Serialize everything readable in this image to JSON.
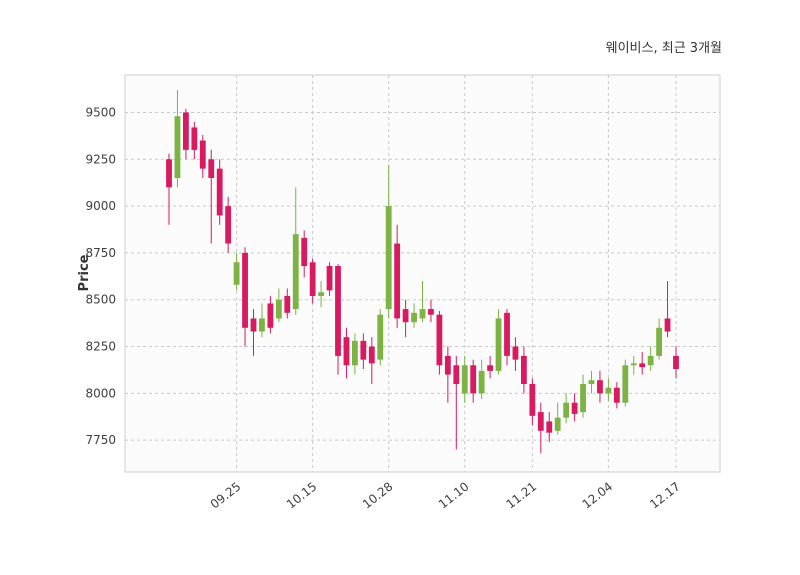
{
  "title": "웨이비스, 최근 3개월",
  "chart_data": {
    "type": "candlestick",
    "title": "웨이비스, 최근 3개월",
    "xlabel": "",
    "ylabel": "Price",
    "legend_position": "none",
    "grid": "dashed",
    "ylim": [
      7580,
      9700
    ],
    "y_ticks": [
      7750,
      8000,
      8250,
      8500,
      8750,
      9000,
      9250,
      9500
    ],
    "x_tick_labels": [
      "09.25",
      "10.15",
      "10.28",
      "11.10",
      "11.21",
      "12.04",
      "12.17"
    ],
    "x_tick_indices": [
      8,
      17,
      26,
      35,
      43,
      52,
      60
    ],
    "colors": {
      "up": "#7cb342",
      "down": "#d81b60",
      "grid": "#c9c9c9",
      "text": "#404040",
      "plot_background": "#fbfbfb"
    },
    "candles_format": [
      "open",
      "high",
      "low",
      "close"
    ],
    "candles": [
      [
        9250,
        9280,
        8900,
        9100
      ],
      [
        9150,
        9620,
        9100,
        9480
      ],
      [
        9500,
        9520,
        9250,
        9300
      ],
      [
        9420,
        9450,
        9250,
        9300
      ],
      [
        9350,
        9380,
        9150,
        9200
      ],
      [
        9250,
        9300,
        8800,
        9150
      ],
      [
        9200,
        9250,
        8900,
        8950
      ],
      [
        9000,
        9050,
        8750,
        8800
      ],
      [
        8580,
        8750,
        8550,
        8700
      ],
      [
        8750,
        8780,
        8250,
        8350
      ],
      [
        8400,
        8450,
        8200,
        8330
      ],
      [
        8330,
        8480,
        8300,
        8400
      ],
      [
        8480,
        8520,
        8320,
        8350
      ],
      [
        8400,
        8560,
        8380,
        8500
      ],
      [
        8520,
        8560,
        8400,
        8430
      ],
      [
        8450,
        9100,
        8420,
        8850
      ],
      [
        8830,
        8870,
        8620,
        8680
      ],
      [
        8700,
        8720,
        8480,
        8520
      ],
      [
        8520,
        8600,
        8460,
        8540
      ],
      [
        8680,
        8700,
        8520,
        8550
      ],
      [
        8680,
        8690,
        8100,
        8200
      ],
      [
        8300,
        8350,
        8080,
        8150
      ],
      [
        8150,
        8320,
        8100,
        8280
      ],
      [
        8280,
        8320,
        8130,
        8180
      ],
      [
        8250,
        8300,
        8050,
        8160
      ],
      [
        8180,
        8450,
        8150,
        8420
      ],
      [
        8450,
        9220,
        8400,
        9000
      ],
      [
        8800,
        8900,
        8350,
        8400
      ],
      [
        8450,
        8500,
        8300,
        8380
      ],
      [
        8380,
        8480,
        8350,
        8430
      ],
      [
        8400,
        8600,
        8380,
        8450
      ],
      [
        8450,
        8500,
        8380,
        8420
      ],
      [
        8420,
        8440,
        8100,
        8150
      ],
      [
        8200,
        8250,
        7950,
        8100
      ],
      [
        8150,
        8200,
        7700,
        8050
      ],
      [
        8000,
        8200,
        7950,
        8150
      ],
      [
        8150,
        8180,
        7950,
        8000
      ],
      [
        8000,
        8180,
        7970,
        8120
      ],
      [
        8150,
        8200,
        8080,
        8120
      ],
      [
        8120,
        8450,
        8100,
        8400
      ],
      [
        8430,
        8450,
        8150,
        8200
      ],
      [
        8250,
        8300,
        8120,
        8180
      ],
      [
        8200,
        8250,
        8000,
        8050
      ],
      [
        8050,
        8080,
        7830,
        7880
      ],
      [
        7900,
        7950,
        7680,
        7800
      ],
      [
        7850,
        7900,
        7740,
        7790
      ],
      [
        7800,
        7950,
        7780,
        7870
      ],
      [
        7870,
        8000,
        7840,
        7950
      ],
      [
        7950,
        8000,
        7850,
        7890
      ],
      [
        7900,
        8100,
        7870,
        8050
      ],
      [
        8050,
        8120,
        8000,
        8070
      ],
      [
        8070,
        8120,
        7950,
        8000
      ],
      [
        8000,
        8080,
        7960,
        8030
      ],
      [
        8030,
        8060,
        7920,
        7950
      ],
      [
        7950,
        8180,
        7930,
        8150
      ],
      [
        8150,
        8200,
        8100,
        8160
      ],
      [
        8160,
        8220,
        8100,
        8140
      ],
      [
        8150,
        8250,
        8120,
        8200
      ],
      [
        8200,
        8400,
        8180,
        8350
      ],
      [
        8400,
        8600,
        8300,
        8330
      ],
      [
        8200,
        8250,
        8080,
        8130
      ]
    ]
  }
}
